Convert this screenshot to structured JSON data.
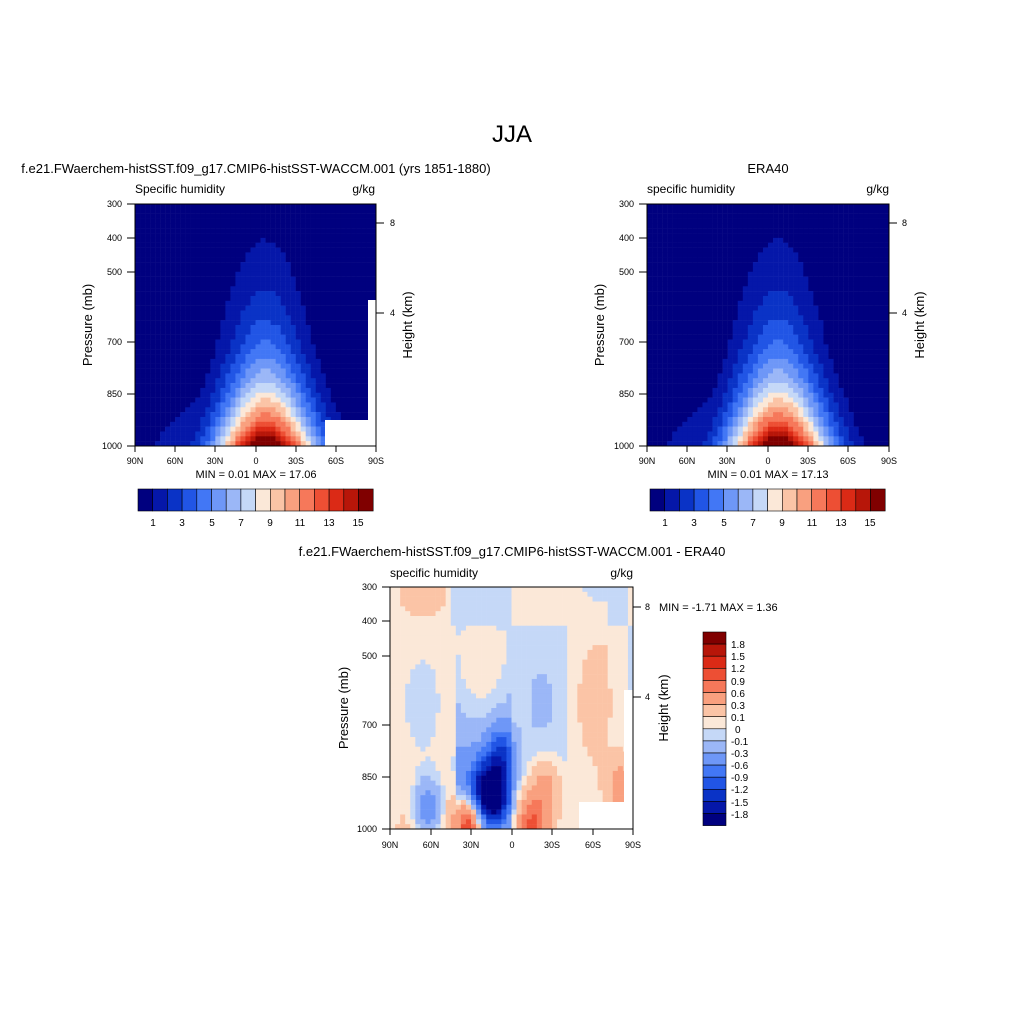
{
  "figure_title": "JJA",
  "colorscales": {
    "humidity": [
      "#00007f",
      "#0517a9",
      "#0a33c6",
      "#2155e5",
      "#4277f5",
      "#6e97f7",
      "#9bb7f7",
      "#c5d8f7",
      "#fbe8d8",
      "#fbc4a6",
      "#f9a07f",
      "#f6785a",
      "#ed4f34",
      "#db2a16",
      "#b71609",
      "#800000"
    ],
    "difference": [
      "#00007f",
      "#0517a9",
      "#0a33c6",
      "#2155e5",
      "#4277f5",
      "#6e97f7",
      "#9bb7f7",
      "#c5d8f7",
      "#fbe8d8",
      "#fbc4a6",
      "#f9a07f",
      "#f6785a",
      "#ed4f34",
      "#db2a16",
      "#b71609",
      "#800000"
    ]
  },
  "panels": [
    {
      "title": "f.e21.FWaerchem-histSST.f09_g17.CMIP6-histSST-WACCM.001 (yrs 1851-1880)",
      "variable": "Specific humidity",
      "units": "g/kg",
      "ylabel": "Pressure (mb)",
      "ylabel_right": "Height (km)",
      "stats": "MIN =   0.01  MAX =  17.06",
      "missing_label": "",
      "colorbar_labels": [
        "1",
        "3",
        "5",
        "7",
        "9",
        "11",
        "13",
        "15"
      ]
    },
    {
      "title": "ERA40",
      "variable": "specific humidity",
      "units": "g/kg",
      "ylabel": "Pressure (mb)",
      "ylabel_right": "Height (km)",
      "stats": "MIN =   0.01  MAX =  17.13",
      "colorbar_labels": [
        "1",
        "3",
        "5",
        "7",
        "9",
        "11",
        "13",
        "15"
      ]
    },
    {
      "title": "f.e21.FWaerchem-histSST.f09_g17.CMIP6-histSST-WACCM.001 - ERA40",
      "variable": "specific humidity",
      "units": "g/kg",
      "ylabel": "Pressure (mb)",
      "ylabel_right": "Height (km)",
      "stats": "MIN =  -1.71  MAX =   1.36",
      "colorbar_labels": [
        "1.8",
        "1.5",
        "1.2",
        "0.9",
        "0.6",
        "0.3",
        "0.1",
        "0",
        "-0.1",
        "-0.3",
        "-0.6",
        "-0.9",
        "-1.2",
        "-1.5",
        "-1.8"
      ]
    }
  ],
  "chart_data": [
    {
      "type": "heatmap",
      "title": "f.e21.FWaerchem-histSST.f09_g17.CMIP6-histSST-WACCM.001 (yrs 1851-1880)",
      "subtitle": "Specific humidity",
      "units": "g/kg",
      "xlabel": "",
      "ylabel": "Pressure (mb)",
      "ylabel_right": "Height (km)",
      "x_ticks": [
        "90N",
        "60N",
        "30N",
        "0",
        "30S",
        "60S",
        "90S"
      ],
      "y_ticks": [
        "300",
        "400",
        "500",
        "700",
        "850",
        "1000"
      ],
      "y_ticks_right": [
        "8",
        "4"
      ],
      "xlim": [
        90,
        -90
      ],
      "ylim": [
        1000,
        300
      ],
      "y_scale": "log",
      "min": 0.01,
      "max": 17.06,
      "levels": [
        1,
        2,
        3,
        4,
        5,
        6,
        7,
        8,
        9,
        10,
        11,
        12,
        13,
        14,
        15
      ],
      "field": {
        "peak_lat": -8,
        "peak_value": 17.06,
        "tilt": 0.03,
        "surface_width_deg": 38,
        "mid_width_deg": 30,
        "north_floor": 3.2,
        "south_floor": 0.6
      }
    },
    {
      "type": "heatmap",
      "title": "ERA40",
      "subtitle": "specific humidity",
      "units": "g/kg",
      "xlabel": "",
      "ylabel": "Pressure (mb)",
      "ylabel_right": "Height (km)",
      "x_ticks": [
        "90N",
        "60N",
        "30N",
        "0",
        "30S",
        "60S",
        "90S"
      ],
      "y_ticks": [
        "300",
        "400",
        "500",
        "700",
        "850",
        "1000"
      ],
      "y_ticks_right": [
        "8",
        "4"
      ],
      "xlim": [
        90,
        -90
      ],
      "ylim": [
        1000,
        300
      ],
      "y_scale": "log",
      "min": 0.01,
      "max": 17.13,
      "levels": [
        1,
        2,
        3,
        4,
        5,
        6,
        7,
        8,
        9,
        10,
        11,
        12,
        13,
        14,
        15
      ],
      "field": {
        "peak_lat": -8,
        "peak_value": 17.13,
        "tilt": 0.03,
        "surface_width_deg": 38,
        "mid_width_deg": 30,
        "north_floor": 3.2,
        "south_floor": 0.6
      }
    },
    {
      "type": "heatmap",
      "title": "f.e21.FWaerchem-histSST.f09_g17.CMIP6-histSST-WACCM.001 - ERA40",
      "subtitle": "specific humidity",
      "units": "g/kg",
      "xlabel": "",
      "ylabel": "Pressure (mb)",
      "ylabel_right": "Height (km)",
      "x_ticks": [
        "90N",
        "60N",
        "30N",
        "0",
        "30S",
        "60S",
        "90S"
      ],
      "y_ticks": [
        "300",
        "400",
        "500",
        "700",
        "850",
        "1000"
      ],
      "y_ticks_right": [
        "8",
        "4"
      ],
      "xlim": [
        90,
        -90
      ],
      "ylim": [
        1000,
        300
      ],
      "y_scale": "log",
      "min": -1.71,
      "max": 1.36,
      "levels": [
        -1.8,
        -1.5,
        -1.2,
        -0.9,
        -0.6,
        -0.3,
        -0.1,
        0,
        0.1,
        0.3,
        0.6,
        0.9,
        1.2,
        1.5,
        1.8
      ],
      "features": [
        {
          "lat": 12,
          "pressure": 850,
          "value": -1.71
        },
        {
          "lat": 22,
          "pressure": 820,
          "value": -1.2
        },
        {
          "lat": 8,
          "pressure": 700,
          "value": -1.0
        },
        {
          "lat": 32,
          "pressure": 980,
          "value": 1.36
        },
        {
          "lat": -15,
          "pressure": 980,
          "value": 0.9
        },
        {
          "lat": -25,
          "pressure": 820,
          "value": 0.4
        },
        {
          "lat": -80,
          "pressure": 820,
          "value": 0.5
        },
        {
          "lat": 62,
          "pressure": 900,
          "value": -0.6
        }
      ]
    }
  ]
}
